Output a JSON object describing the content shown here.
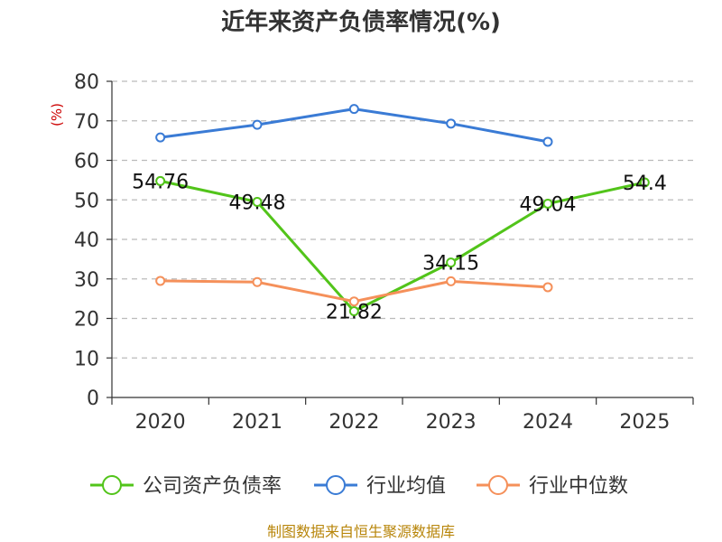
{
  "chart_data": {
    "type": "line",
    "title": "近年来资产负债率情况(%)",
    "ylabel": "(%)",
    "ylim": [
      0,
      80
    ],
    "yticks": [
      0,
      10,
      20,
      30,
      40,
      50,
      60,
      70,
      80
    ],
    "grid": true,
    "legend_position": "bottom",
    "x": [
      "2020",
      "2021",
      "2022",
      "2023",
      "2024",
      "2025"
    ],
    "series": [
      {
        "name": "公司资产负债率",
        "color": "#52c41a",
        "values": [
          54.76,
          49.48,
          21.82,
          34.15,
          49.04,
          54.4
        ],
        "show_labels": true,
        "labels": [
          "54.76",
          "49.48",
          "21.82",
          "34.15",
          "49.04",
          "54.4"
        ]
      },
      {
        "name": "行业均值",
        "color": "#3a7bd5",
        "values": [
          65.8,
          69.0,
          73.0,
          69.3,
          64.7,
          null
        ],
        "show_labels": false
      },
      {
        "name": "行业中位数",
        "color": "#f5905a",
        "values": [
          29.5,
          29.2,
          24.3,
          29.4,
          27.9,
          null
        ],
        "show_labels": false
      }
    ]
  },
  "source_note": "制图数据来自恒生聚源数据库"
}
